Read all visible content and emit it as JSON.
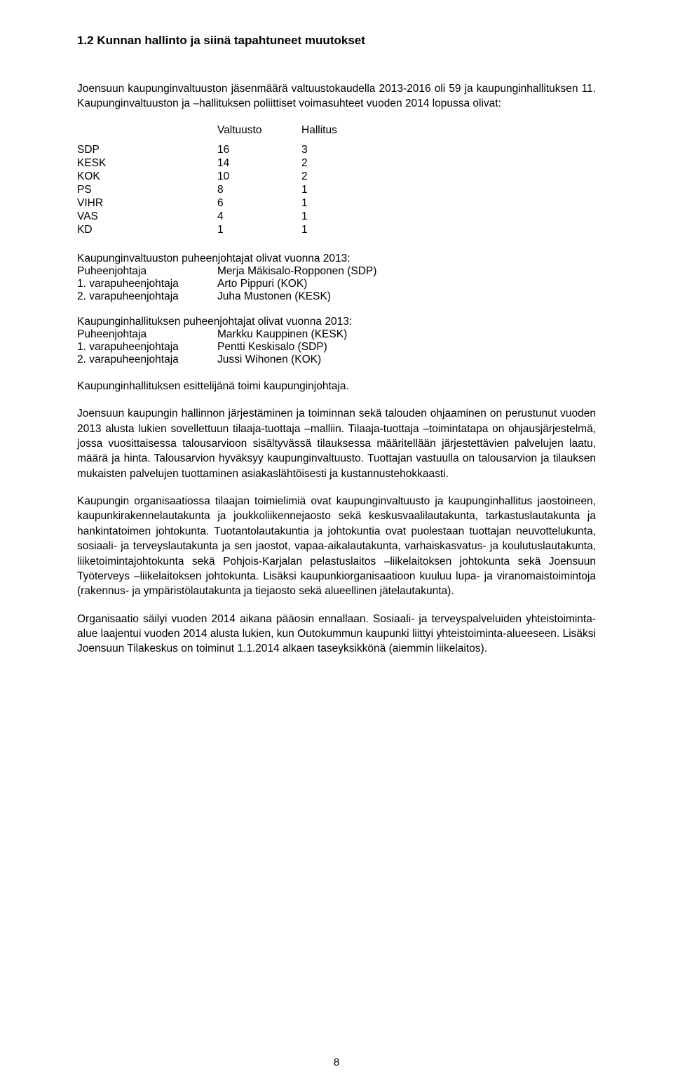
{
  "heading": "1.2 Kunnan hallinto ja siinä tapahtuneet muutokset",
  "intro1": "Joensuun kaupunginvaltuuston jäsenmäärä valtuustokaudella 2013-2016 oli 59 ja kaupunginhallituksen 11. Kaupunginvaltuuston ja –hallituksen poliittiset voimasuhteet vuoden 2014 lopussa olivat:",
  "voteHeader": {
    "col1": "Valtuusto",
    "col2": "Hallitus"
  },
  "votes": [
    {
      "party": "SDP",
      "v": "16",
      "h": "3"
    },
    {
      "party": "KESK",
      "v": "14",
      "h": "2"
    },
    {
      "party": "KOK",
      "v": "10",
      "h": "2"
    },
    {
      "party": "PS",
      "v": "8",
      "h": "1"
    },
    {
      "party": "VIHR",
      "v": "6",
      "h": "1"
    },
    {
      "party": "VAS",
      "v": "4",
      "h": "1"
    },
    {
      "party": "KD",
      "v": "1",
      "h": "1"
    }
  ],
  "valtuustoTitle": "Kaupunginvaltuuston puheenjohtajat olivat vuonna 2013:",
  "valtuustoLeaders": [
    {
      "role": "Puheenjohtaja",
      "name": "Merja Mäkisalo-Ropponen (SDP)"
    },
    {
      "role": "1. varapuheenjohtaja",
      "name": "Arto Pippuri (KOK)"
    },
    {
      "role": "2. varapuheenjohtaja",
      "name": "Juha Mustonen (KESK)"
    }
  ],
  "hallitusTitle": "Kaupunginhallituksen puheenjohtajat olivat vuonna 2013:",
  "hallitusLeaders": [
    {
      "role": "Puheenjohtaja",
      "name": "Markku Kauppinen (KESK)"
    },
    {
      "role": "1. varapuheenjohtaja",
      "name": "Pentti Keskisalo (SDP)"
    },
    {
      "role": "2. varapuheenjohtaja",
      "name": "Jussi Wihonen (KOK)"
    }
  ],
  "esittelija": "Kaupunginhallituksen esittelijänä toimi kaupunginjohtaja.",
  "para2": "Joensuun kaupungin hallinnon järjestäminen ja toiminnan sekä talouden ohjaaminen on perustunut vuoden 2013 alusta lukien sovellettuun tilaaja-tuottaja –malliin. Tilaaja-tuottaja –toimintatapa on ohjausjärjestelmä, jossa vuosittaisessa talousarvioon sisältyvässä tilauksessa määritellään järjestettävien palvelujen laatu, määrä ja hinta. Talousarvion hyväksyy kaupunginvaltuusto. Tuottajan vastuulla on talousarvion ja tilauksen mukaisten palvelujen tuottaminen asiakaslähtöisesti ja kustannustehokkaasti.",
  "para3": "Kaupungin organisaatiossa tilaajan toimielimiä ovat kaupunginvaltuusto ja kaupunginhallitus jaostoineen, kaupunkirakennelautakunta ja joukkoliikennejaosto sekä keskusvaalilautakunta, tarkastuslautakunta ja hankintatoimen johtokunta. Tuotantolautakuntia ja johtokuntia ovat puolestaan tuottajan neuvottelukunta, sosiaali- ja terveyslautakunta ja sen jaostot, vapaa-aikalautakunta, varhaiskasvatus- ja koulutuslautakunta, liiketoimintajohtokunta sekä Pohjois-Karjalan pelastuslaitos –liikelaitoksen johtokunta sekä Joensuun Työterveys –liikelaitoksen johtokunta. Lisäksi kaupunkiorganisaatioon kuuluu lupa- ja viranomaistoimintoja (rakennus- ja ympäristölautakunta ja tiejaosto sekä alueellinen jätelautakunta).",
  "para4": "Organisaatio säilyi vuoden 2014 aikana pääosin ennallaan. Sosiaali- ja terveyspalveluiden yhteistoiminta-alue laajentui vuoden 2014 alusta lukien, kun Outokummun kaupunki liittyi yhteistoiminta-alueeseen. Lisäksi Joensuun Tilakeskus on toiminut 1.1.2014 alkaen taseyksikkönä (aiemmin liikelaitos).",
  "pageNumber": "8"
}
